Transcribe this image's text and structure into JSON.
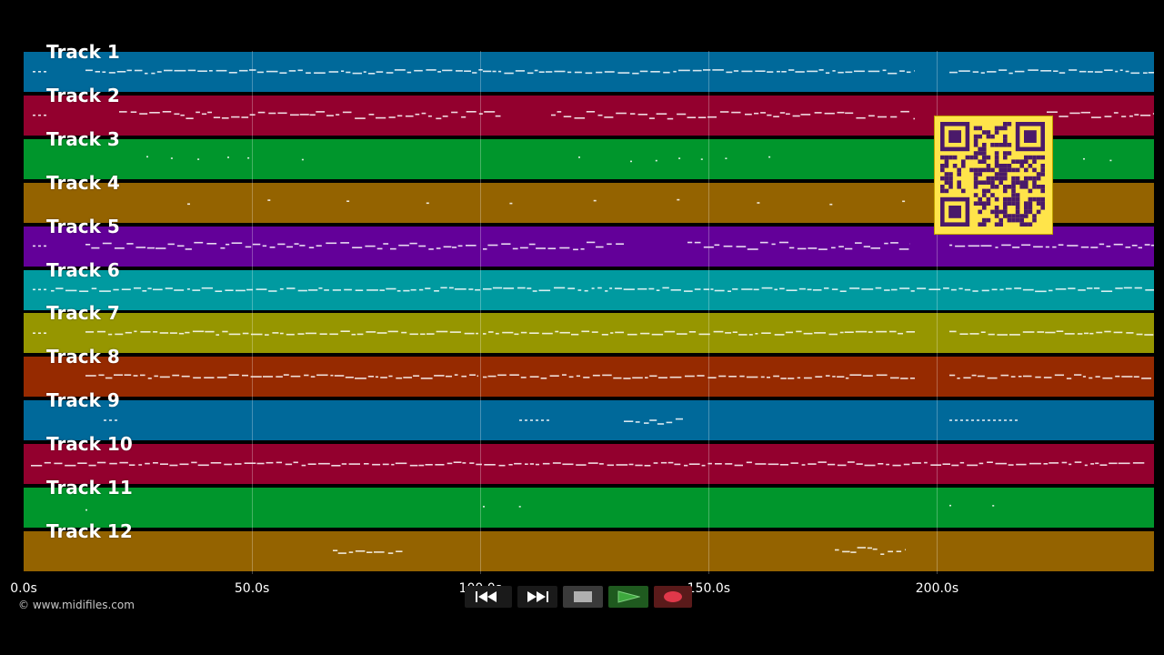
{
  "tracks": [
    {
      "label": "Track 1",
      "color": "#00699a"
    },
    {
      "label": "Track 2",
      "color": "#93002e"
    },
    {
      "label": "Track 3",
      "color": "#00962c"
    },
    {
      "label": "Track 4",
      "color": "#946300"
    },
    {
      "label": "Track 5",
      "color": "#630099"
    },
    {
      "label": "Track 6",
      "color": "#009aa0"
    },
    {
      "label": "Track 7",
      "color": "#969600"
    },
    {
      "label": "Track 8",
      "color": "#962a00"
    },
    {
      "label": "Track 9",
      "color": "#00699a"
    },
    {
      "label": "Track 10",
      "color": "#93002e"
    },
    {
      "label": "Track 11",
      "color": "#00962c"
    },
    {
      "label": "Track 12",
      "color": "#946300"
    }
  ],
  "time_axis": {
    "max_seconds": 247.5,
    "ticks": [
      "0.0s",
      "50.0s",
      "100.0s",
      "150.0s",
      "200.0s"
    ],
    "tick_values": [
      0,
      50,
      100,
      150,
      200
    ]
  },
  "copyright": "© www.midifiles.com",
  "transport": {
    "rewind": "rewind-icon",
    "fast_forward": "fast-forward-icon",
    "stop": "stop-icon",
    "play": "play-icon",
    "record": "record-icon",
    "play_color": "#3ea83e",
    "record_color": "#e0384a"
  },
  "overlay": {
    "qr_color": "#ffe44a",
    "qr_ink": "#4a1a6a"
  }
}
